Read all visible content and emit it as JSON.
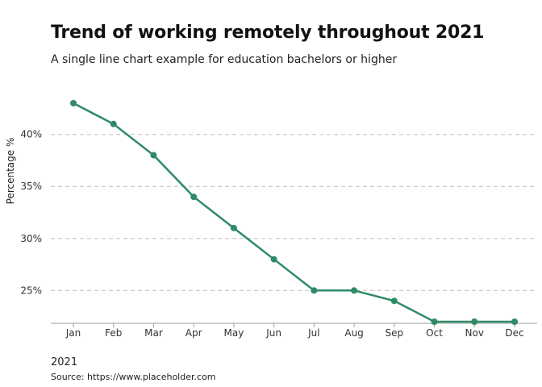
{
  "chart_data": {
    "type": "line",
    "title": "Trend of working remotely throughout 2021",
    "subtitle": "A single line chart example for education bachelors or higher",
    "xlabel": "2021",
    "ylabel": "Percentage %",
    "source": "Source: https://www.placeholder.com",
    "categories": [
      "Jan",
      "Feb",
      "Mar",
      "Apr",
      "May",
      "Jun",
      "Jul",
      "Aug",
      "Sep",
      "Oct",
      "Nov",
      "Dec"
    ],
    "series": [
      {
        "values": [
          43,
          41,
          38,
          34,
          31,
          28,
          25,
          25,
          24,
          22,
          22,
          22
        ],
        "color": "#2e8b66"
      }
    ],
    "ylim": [
      22,
      43
    ],
    "yticks": [
      25,
      30,
      35,
      40
    ],
    "ytick_labels": [
      "25%",
      "30%",
      "35%",
      "40%"
    ],
    "grid": true,
    "gridlines": "horizontal-dashed",
    "legend": "none"
  }
}
